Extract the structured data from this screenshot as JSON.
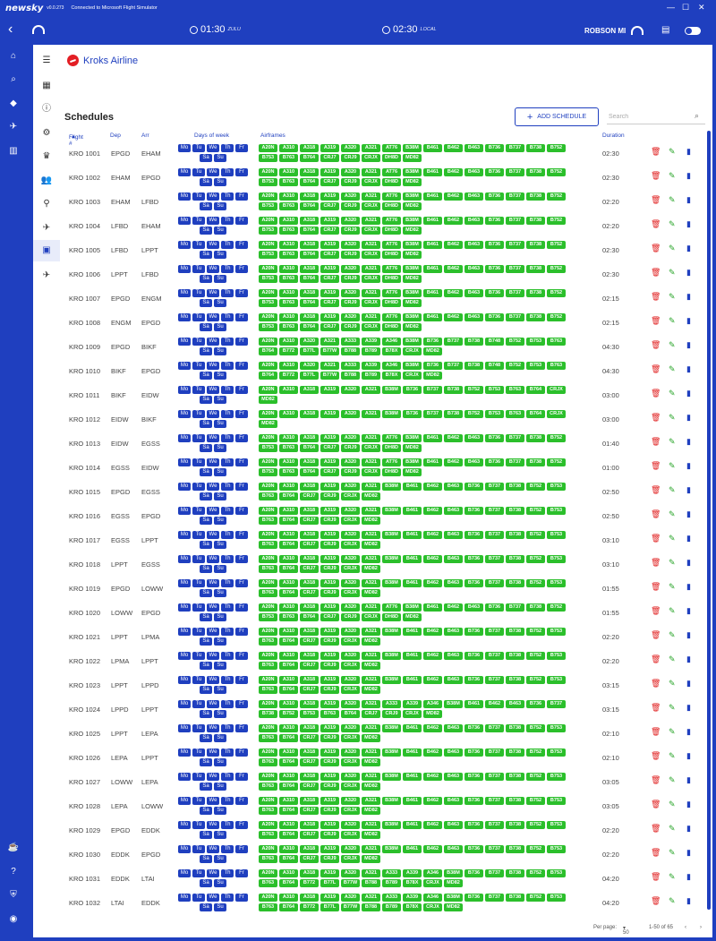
{
  "titlebar": {
    "brand": "newsky",
    "version": "v0.0.273",
    "status": "Connected to Microsoft Flight Simulator",
    "min": "—",
    "max": "☐",
    "close": "✕"
  },
  "appbar": {
    "zulu_time": "01:30",
    "zulu_label": "ZULU",
    "local_time": "02:30",
    "local_label": "LOCAL",
    "user": "ROBSON MI"
  },
  "airline": {
    "name": "Kroks Airline"
  },
  "page": {
    "title": "Schedules",
    "add_button": "ADD SCHEDULE",
    "search_placeholder": "Search"
  },
  "table": {
    "headers": {
      "flight": "Flight #",
      "dep": "Dep",
      "arr": "Arr",
      "days": "Days of week",
      "airframes": "Airframes",
      "duration": "Duration"
    }
  },
  "days_top": [
    "Mo",
    "Tu",
    "We",
    "Th",
    "Fr"
  ],
  "days_bottom": [
    "Sa",
    "Su"
  ],
  "airframe_sets": {
    "A": [
      "A20N",
      "A310",
      "A318",
      "A319",
      "A320",
      "A321",
      "AT76",
      "B38M",
      "B461",
      "B462",
      "B463",
      "B736",
      "B737",
      "B738",
      "B752",
      "B753",
      "B763",
      "B764",
      "CRJ7",
      "CRJ9",
      "CRJX",
      "DH8D",
      "MD82"
    ],
    "B": [
      "A20N",
      "A310",
      "A320",
      "A321",
      "A333",
      "A339",
      "A346",
      "B38M",
      "B736",
      "B737",
      "B738",
      "B748",
      "B752",
      "B753",
      "B763",
      "B764",
      "B772",
      "B77L",
      "B77W",
      "B788",
      "B789",
      "B78X",
      "CRJX",
      "MD82"
    ],
    "C": [
      "A20N",
      "A310",
      "A318",
      "A319",
      "A320",
      "A321",
      "B38M",
      "B736",
      "B737",
      "B738",
      "B752",
      "B753",
      "B763",
      "B764",
      "CRJX",
      "MD82"
    ],
    "D": [
      "A20N",
      "A310",
      "A318",
      "A319",
      "A320",
      "A321",
      "B38M",
      "B461",
      "B462",
      "B463",
      "B736",
      "B737",
      "B738",
      "B752",
      "B753",
      "B763",
      "B764",
      "CRJ7",
      "CRJ9",
      "CRJX",
      "MD82"
    ],
    "E": [
      "A20N",
      "A310",
      "A318",
      "A319",
      "A320",
      "A321",
      "A333",
      "A339",
      "A346",
      "B38M",
      "B461",
      "B462",
      "B463",
      "B736",
      "B737",
      "B738",
      "B752",
      "B753",
      "B763",
      "B764",
      "CRJ7",
      "CRJ9",
      "CRJX",
      "MD82"
    ],
    "F": [
      "A20N",
      "A310",
      "A318",
      "A319",
      "A320",
      "A321",
      "A333",
      "A339",
      "A346",
      "B38M",
      "B736",
      "B737",
      "B738",
      "B752",
      "B753",
      "B763",
      "B764",
      "B772",
      "B77L",
      "B77W",
      "B788",
      "B789",
      "B78X",
      "CRJX",
      "MD82"
    ]
  },
  "schedules": [
    {
      "flight": "KRO 1001",
      "dep": "EPGD",
      "arr": "EHAM",
      "set": "A",
      "duration": "02:30"
    },
    {
      "flight": "KRO 1002",
      "dep": "EHAM",
      "arr": "EPGD",
      "set": "A",
      "duration": "02:30"
    },
    {
      "flight": "KRO 1003",
      "dep": "EHAM",
      "arr": "LFBD",
      "set": "A",
      "duration": "02:20"
    },
    {
      "flight": "KRO 1004",
      "dep": "LFBD",
      "arr": "EHAM",
      "set": "A",
      "duration": "02:20"
    },
    {
      "flight": "KRO 1005",
      "dep": "LFBD",
      "arr": "LPPT",
      "set": "A",
      "duration": "02:30"
    },
    {
      "flight": "KRO 1006",
      "dep": "LPPT",
      "arr": "LFBD",
      "set": "A",
      "duration": "02:30"
    },
    {
      "flight": "KRO 1007",
      "dep": "EPGD",
      "arr": "ENGM",
      "set": "A",
      "duration": "02:15"
    },
    {
      "flight": "KRO 1008",
      "dep": "ENGM",
      "arr": "EPGD",
      "set": "A",
      "duration": "02:15"
    },
    {
      "flight": "KRO 1009",
      "dep": "EPGD",
      "arr": "BIKF",
      "set": "B",
      "duration": "04:30"
    },
    {
      "flight": "KRO 1010",
      "dep": "BIKF",
      "arr": "EPGD",
      "set": "B",
      "duration": "04:30"
    },
    {
      "flight": "KRO 1011",
      "dep": "BIKF",
      "arr": "EIDW",
      "set": "C",
      "duration": "03:00"
    },
    {
      "flight": "KRO 1012",
      "dep": "EIDW",
      "arr": "BIKF",
      "set": "C",
      "duration": "03:00"
    },
    {
      "flight": "KRO 1013",
      "dep": "EIDW",
      "arr": "EGSS",
      "set": "A",
      "duration": "01:40"
    },
    {
      "flight": "KRO 1014",
      "dep": "EGSS",
      "arr": "EIDW",
      "set": "A",
      "duration": "01:00"
    },
    {
      "flight": "KRO 1015",
      "dep": "EPGD",
      "arr": "EGSS",
      "set": "D",
      "duration": "02:50"
    },
    {
      "flight": "KRO 1016",
      "dep": "EGSS",
      "arr": "EPGD",
      "set": "D",
      "duration": "02:50"
    },
    {
      "flight": "KRO 1017",
      "dep": "EGSS",
      "arr": "LPPT",
      "set": "D",
      "duration": "03:10"
    },
    {
      "flight": "KRO 1018",
      "dep": "LPPT",
      "arr": "EGSS",
      "set": "D",
      "duration": "03:10"
    },
    {
      "flight": "KRO 1019",
      "dep": "EPGD",
      "arr": "LOWW",
      "set": "D",
      "duration": "01:55"
    },
    {
      "flight": "KRO 1020",
      "dep": "LOWW",
      "arr": "EPGD",
      "set": "A",
      "duration": "01:55"
    },
    {
      "flight": "KRO 1021",
      "dep": "LPPT",
      "arr": "LPMA",
      "set": "D",
      "duration": "02:20"
    },
    {
      "flight": "KRO 1022",
      "dep": "LPMA",
      "arr": "LPPT",
      "set": "D",
      "duration": "02:20"
    },
    {
      "flight": "KRO 1023",
      "dep": "LPPT",
      "arr": "LPPD",
      "set": "D",
      "duration": "03:15"
    },
    {
      "flight": "KRO 1024",
      "dep": "LPPD",
      "arr": "LPPT",
      "set": "E",
      "duration": "03:15"
    },
    {
      "flight": "KRO 1025",
      "dep": "LPPT",
      "arr": "LEPA",
      "set": "D",
      "duration": "02:10"
    },
    {
      "flight": "KRO 1026",
      "dep": "LEPA",
      "arr": "LPPT",
      "set": "D",
      "duration": "02:10"
    },
    {
      "flight": "KRO 1027",
      "dep": "LOWW",
      "arr": "LEPA",
      "set": "D",
      "duration": "03:05"
    },
    {
      "flight": "KRO 1028",
      "dep": "LEPA",
      "arr": "LOWW",
      "set": "D",
      "duration": "03:05"
    },
    {
      "flight": "KRO 1029",
      "dep": "EPGD",
      "arr": "EDDK",
      "set": "D",
      "duration": "02:20"
    },
    {
      "flight": "KRO 1030",
      "dep": "EDDK",
      "arr": "EPGD",
      "set": "D",
      "duration": "02:20"
    },
    {
      "flight": "KRO 1031",
      "dep": "EDDK",
      "arr": "LTAI",
      "set": "F",
      "duration": "04:20"
    },
    {
      "flight": "KRO 1032",
      "dep": "LTAI",
      "arr": "EDDK",
      "set": "F",
      "duration": "04:20"
    }
  ],
  "footer": {
    "per_page_label": "Per page:",
    "per_page_value": "50",
    "range": "1-50 of 65"
  },
  "icons": {
    "delete": "trash-icon",
    "edit": "pencil-icon",
    "stats": "bar-chart-icon"
  },
  "colors": {
    "primary": "#1f3fbf",
    "chip": "#2bbf2b",
    "delete": "#e02020",
    "edit": "#2aa52a"
  }
}
